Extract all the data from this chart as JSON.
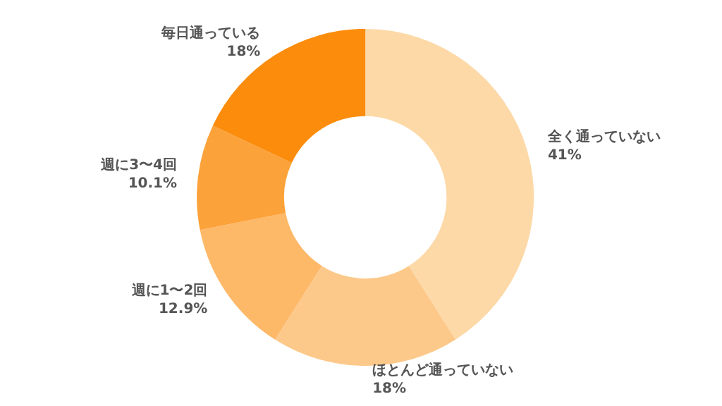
{
  "chart_data": {
    "type": "donut",
    "categories": [
      "全く通っていない",
      "ほとんど通っていない",
      "週に1〜2回",
      "週に3〜4回",
      "毎日通っている"
    ],
    "values": [
      41,
      18,
      12.9,
      10.1,
      18
    ],
    "value_labels": [
      "41%",
      "18%",
      "12.9%",
      "10.1%",
      "18%"
    ],
    "colors": [
      "#fdd9a8",
      "#fdc98a",
      "#fdb868",
      "#fca23a",
      "#fb8c0c"
    ],
    "legend": false
  }
}
